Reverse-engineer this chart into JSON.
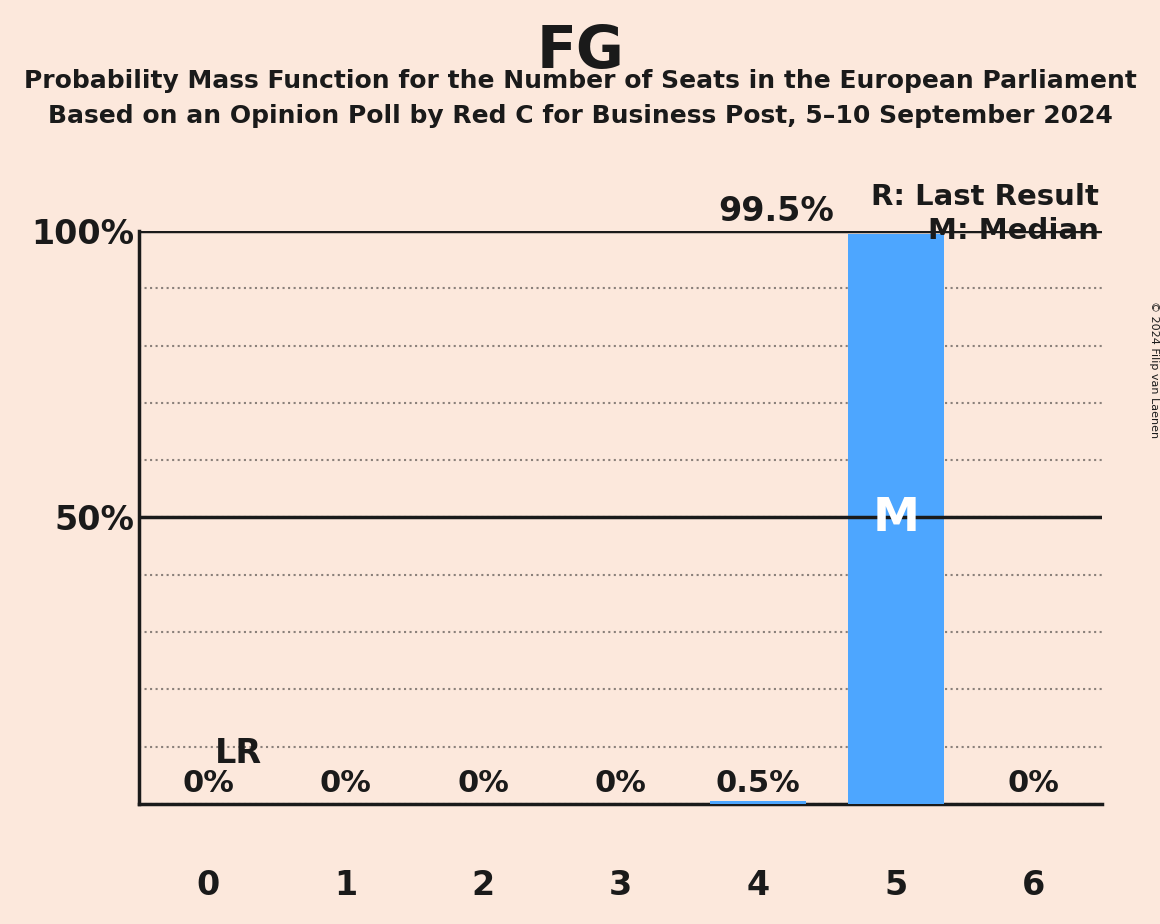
{
  "title": "FG",
  "subtitle_line1": "Probability Mass Function for the Number of Seats in the European Parliament",
  "subtitle_line2": "Based on an Opinion Poll by Red C for Business Post, 5–10 September 2024",
  "copyright_text": "© 2024 Filip van Laenen",
  "x_values": [
    0,
    1,
    2,
    3,
    4,
    5,
    6
  ],
  "y_values": [
    0.0,
    0.0,
    0.0,
    0.0,
    0.005,
    0.995,
    0.0
  ],
  "bar_color": "#4da6ff",
  "background_color": "#fce8dc",
  "text_color": "#1a1a1a",
  "median_seat": 5,
  "last_result_seat": 0,
  "median_label": "M",
  "last_result_label": "LR",
  "legend_r": "R: Last Result",
  "legend_m": "M: Median",
  "ylim": [
    0,
    1.0
  ],
  "yticks": [
    0.0,
    0.1,
    0.2,
    0.3,
    0.4,
    0.5,
    0.6,
    0.7,
    0.8,
    0.9,
    1.0
  ],
  "ytick_labels": [
    "",
    "",
    "",
    "",
    "",
    "50%",
    "",
    "",
    "",
    "",
    "100%"
  ],
  "grid_color": "#1a1a1a",
  "bar_width": 0.7,
  "annotation_99": "99.5%",
  "bar_percent_labels": [
    "0%",
    "0%",
    "0%",
    "0%",
    "0.5%",
    "",
    "0%"
  ]
}
